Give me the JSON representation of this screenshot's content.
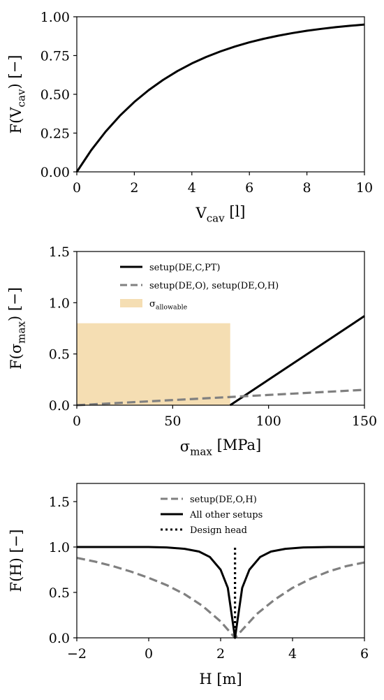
{
  "chart_data": [
    {
      "type": "line",
      "title": "",
      "xlabel": "V_cav [l]",
      "ylabel": "F(V_cav) [−]",
      "xlim": [
        0,
        10
      ],
      "ylim": [
        0,
        1
      ],
      "xticks": [
        0,
        2,
        4,
        6,
        8,
        10
      ],
      "yticks": [
        0.0,
        0.25,
        0.5,
        0.75,
        1.0
      ],
      "xtick_labels": [
        "0",
        "2",
        "4",
        "6",
        "8",
        "10"
      ],
      "ytick_labels": [
        "0.00",
        "0.25",
        "0.50",
        "0.75",
        "1.00"
      ],
      "grid": false,
      "series": [
        {
          "color": "#000000",
          "style": "solid",
          "x": [
            0,
            0.5,
            1,
            1.5,
            2,
            2.5,
            3,
            3.5,
            4,
            4.5,
            5,
            5.5,
            6,
            6.5,
            7,
            7.5,
            8,
            8.5,
            9,
            9.5,
            10
          ],
          "y": [
            0.0,
            0.139,
            0.259,
            0.362,
            0.451,
            0.527,
            0.593,
            0.65,
            0.699,
            0.741,
            0.777,
            0.808,
            0.835,
            0.858,
            0.878,
            0.895,
            0.91,
            0.922,
            0.933,
            0.942,
            0.95
          ]
        }
      ]
    },
    {
      "type": "line",
      "title": "",
      "xlabel": "σ_max [MPa]",
      "ylabel": "F(σ_max) [−]",
      "xlim": [
        0,
        150
      ],
      "ylim": [
        0,
        1.5
      ],
      "xticks": [
        0,
        50,
        100,
        150
      ],
      "yticks": [
        0.0,
        0.5,
        1.0,
        1.5
      ],
      "xtick_labels": [
        "0",
        "50",
        "100",
        "150"
      ],
      "ytick_labels": [
        "0.0",
        "0.5",
        "1.0",
        "1.5"
      ],
      "grid": false,
      "legend_position": "top-center",
      "shaded_region": {
        "name": "σ_allowable",
        "x": [
          0,
          80
        ],
        "y": [
          0,
          0.8
        ],
        "color": "#f5deb3"
      },
      "series": [
        {
          "name": "setup(DE,C,PT)",
          "color": "#000000",
          "style": "solid",
          "x": [
            80,
            150
          ],
          "y": [
            0.0,
            0.87
          ]
        },
        {
          "name": "setup(DE,O), setup(DE,O,H)",
          "color": "#808080",
          "style": "dashed",
          "x": [
            0,
            150
          ],
          "y": [
            0.0,
            0.15
          ]
        }
      ]
    },
    {
      "type": "line",
      "title": "",
      "xlabel": "H [m]",
      "ylabel": "F(H) [−]",
      "xlim": [
        -2,
        6
      ],
      "ylim": [
        0,
        1.7
      ],
      "xticks": [
        -2,
        0,
        2,
        4,
        6
      ],
      "yticks": [
        0.0,
        0.5,
        1.0,
        1.5
      ],
      "xtick_labels": [
        "−2",
        "0",
        "2",
        "4",
        "6"
      ],
      "ytick_labels": [
        "0.0",
        "0.5",
        "1.0",
        "1.5"
      ],
      "grid": false,
      "legend_position": "top-center",
      "series": [
        {
          "name": "setup(DE,O,H)",
          "color": "#808080",
          "style": "dashed",
          "x": [
            -2,
            -1.5,
            -1,
            -0.5,
            0,
            0.5,
            1,
            1.5,
            2,
            2.4,
            3,
            3.5,
            4,
            4.5,
            5,
            5.5,
            6
          ],
          "y": [
            0.88,
            0.84,
            0.79,
            0.73,
            0.66,
            0.58,
            0.48,
            0.35,
            0.18,
            0.0,
            0.26,
            0.42,
            0.55,
            0.65,
            0.73,
            0.79,
            0.83
          ]
        },
        {
          "name": "All other setups",
          "color": "#000000",
          "style": "solid",
          "x": [
            -2,
            -1,
            0,
            0.5,
            1,
            1.4,
            1.7,
            2.0,
            2.2,
            2.4,
            2.6,
            2.8,
            3.1,
            3.4,
            3.8,
            4.3,
            5,
            6
          ],
          "y": [
            1.0,
            1.0,
            1.0,
            0.995,
            0.98,
            0.95,
            0.89,
            0.75,
            0.55,
            0.0,
            0.55,
            0.75,
            0.89,
            0.95,
            0.98,
            0.995,
            1.0,
            1.0
          ]
        },
        {
          "name": "Design head",
          "color": "#000000",
          "style": "dotted",
          "x": [
            2.4,
            2.4
          ],
          "y": [
            0.0,
            1.0
          ]
        }
      ]
    }
  ]
}
